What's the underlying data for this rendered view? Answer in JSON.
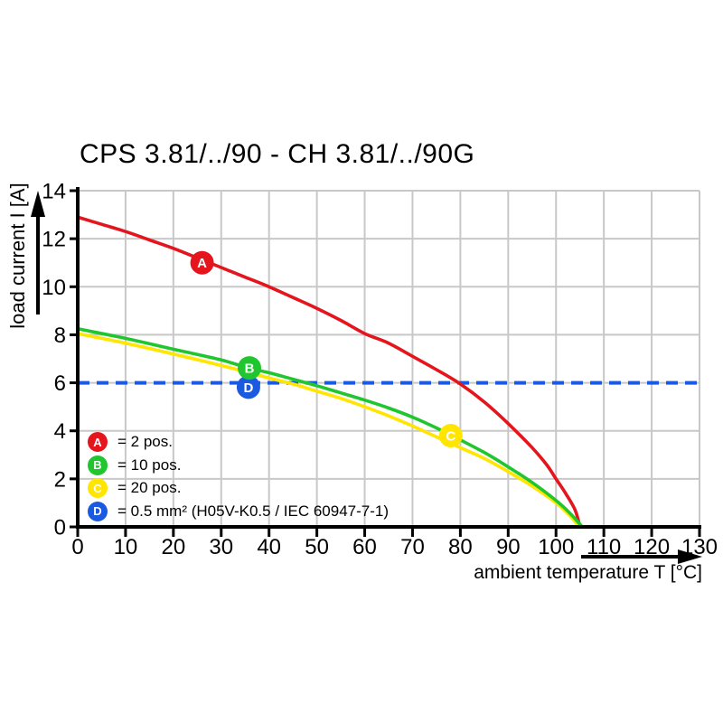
{
  "title": "CPS 3.81/../90 - CH 3.81/../90G",
  "axes": {
    "x": {
      "label": "ambient temperature T [°C]"
    },
    "y": {
      "label": "load current I [A]"
    }
  },
  "legend": {
    "items": [
      {
        "key": "A",
        "color": "#e5151d",
        "label": "= 2 pos."
      },
      {
        "key": "B",
        "color": "#1fc62e",
        "label": "= 10 pos."
      },
      {
        "key": "C",
        "color": "#ffe500",
        "label": "= 20 pos."
      },
      {
        "key": "D",
        "color": "#1b59e0",
        "label": "= 0.5 mm² (H05V-K0.5 / IEC 60947-7-1)"
      }
    ]
  },
  "colors": {
    "grid": "#c8c8c8",
    "axis": "#000000",
    "marker_letter": "#ffffff"
  },
  "chart_data": {
    "type": "line",
    "title": "CPS 3.81/../90 - CH 3.81/../90G",
    "xlabel": "ambient temperature T [°C]",
    "ylabel": "load current I [A]",
    "xlim": [
      0,
      130
    ],
    "ylim": [
      0,
      14
    ],
    "x_ticks": [
      0,
      10,
      20,
      30,
      40,
      50,
      60,
      70,
      80,
      90,
      100,
      110,
      120,
      130
    ],
    "y_ticks": [
      0,
      2,
      4,
      6,
      8,
      10,
      12,
      14
    ],
    "grid": true,
    "legend_position": "inside-lower-left",
    "series": [
      {
        "id": "d",
        "name": "D = 0.5 mm² (H05V-K0.5 / IEC 60947-7-1)",
        "color": "#1b59e0",
        "style": "dashed",
        "points": [
          [
            0,
            6
          ],
          [
            130,
            6
          ]
        ]
      },
      {
        "id": "a",
        "name": "A = 2 pos.",
        "color": "#e5151d",
        "style": "solid",
        "points": [
          [
            0,
            12.9
          ],
          [
            5,
            12.6
          ],
          [
            10,
            12.3
          ],
          [
            15,
            11.95
          ],
          [
            20,
            11.6
          ],
          [
            25,
            11.2
          ],
          [
            30,
            10.8
          ],
          [
            35,
            10.4
          ],
          [
            40,
            10.0
          ],
          [
            45,
            9.55
          ],
          [
            50,
            9.1
          ],
          [
            55,
            8.6
          ],
          [
            60,
            8.05
          ],
          [
            65,
            7.65
          ],
          [
            70,
            7.1
          ],
          [
            75,
            6.55
          ],
          [
            80,
            5.95
          ],
          [
            85,
            5.2
          ],
          [
            90,
            4.3
          ],
          [
            95,
            3.3
          ],
          [
            98,
            2.6
          ],
          [
            100,
            2.0
          ],
          [
            102,
            1.4
          ],
          [
            104,
            0.7
          ],
          [
            105,
            0
          ]
        ]
      },
      {
        "id": "c",
        "name": "C = 20 pos.",
        "color": "#ffe500",
        "style": "solid",
        "points": [
          [
            0,
            8.05
          ],
          [
            10,
            7.65
          ],
          [
            20,
            7.2
          ],
          [
            30,
            6.72
          ],
          [
            40,
            6.2
          ],
          [
            45,
            5.95
          ],
          [
            50,
            5.65
          ],
          [
            55,
            5.35
          ],
          [
            60,
            5.0
          ],
          [
            65,
            4.62
          ],
          [
            70,
            4.2
          ],
          [
            75,
            3.75
          ],
          [
            80,
            3.3
          ],
          [
            85,
            2.85
          ],
          [
            90,
            2.3
          ],
          [
            95,
            1.7
          ],
          [
            100,
            1.0
          ],
          [
            103,
            0.45
          ],
          [
            104.8,
            0
          ]
        ]
      },
      {
        "id": "b",
        "name": "B = 10 pos.",
        "color": "#1fc62e",
        "style": "solid",
        "points": [
          [
            0,
            8.25
          ],
          [
            10,
            7.85
          ],
          [
            20,
            7.4
          ],
          [
            30,
            6.95
          ],
          [
            36,
            6.6
          ],
          [
            40,
            6.42
          ],
          [
            45,
            6.15
          ],
          [
            50,
            5.88
          ],
          [
            55,
            5.58
          ],
          [
            60,
            5.28
          ],
          [
            65,
            4.95
          ],
          [
            70,
            4.57
          ],
          [
            75,
            4.12
          ],
          [
            80,
            3.62
          ],
          [
            85,
            3.1
          ],
          [
            90,
            2.5
          ],
          [
            95,
            1.85
          ],
          [
            100,
            1.1
          ],
          [
            103,
            0.55
          ],
          [
            105.5,
            0
          ]
        ]
      }
    ],
    "markers": [
      {
        "key": "A",
        "x": 26,
        "y": 11.0,
        "color": "#e5151d"
      },
      {
        "key": "D",
        "x": 35.7,
        "y": 5.82,
        "color": "#1b59e0"
      },
      {
        "key": "B",
        "x": 35.9,
        "y": 6.62,
        "color": "#1fc62e"
      },
      {
        "key": "C",
        "x": 78,
        "y": 3.8,
        "color": "#ffe500"
      }
    ]
  }
}
